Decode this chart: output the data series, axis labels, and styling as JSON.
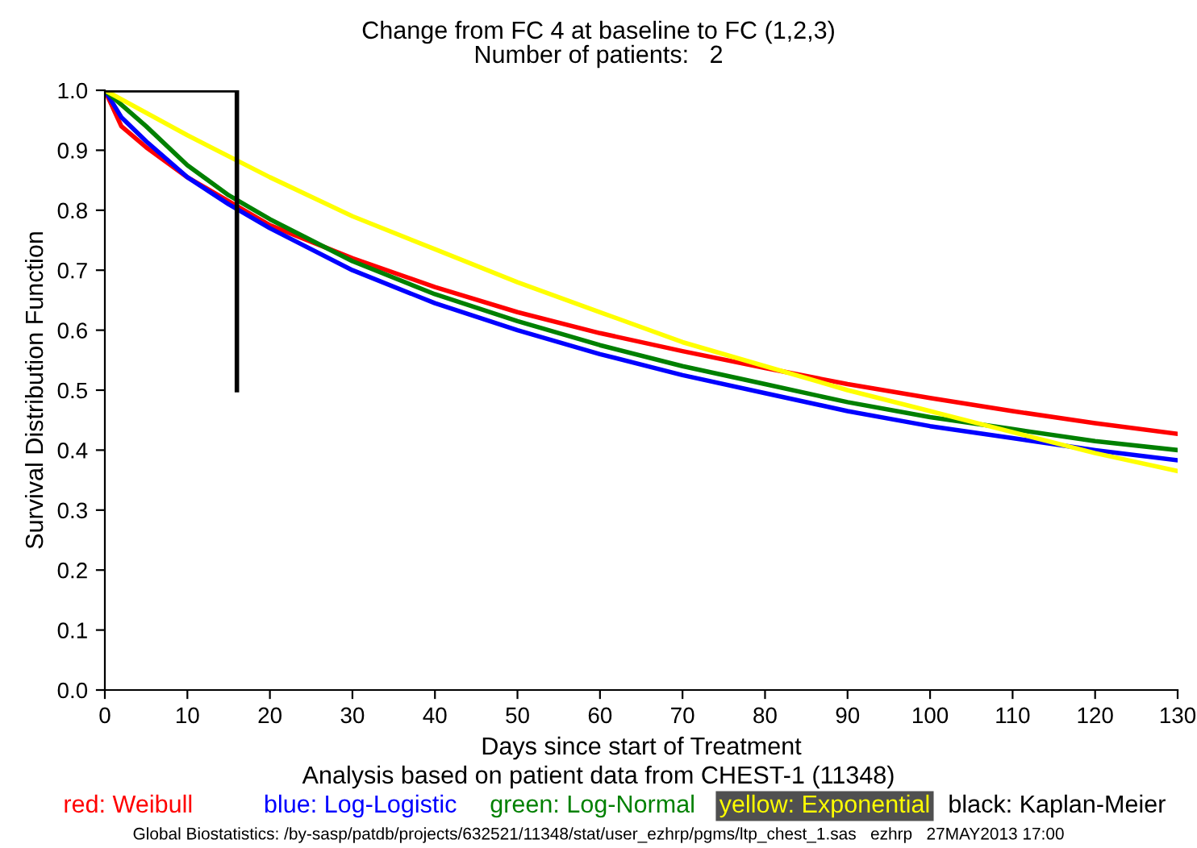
{
  "chart_data": {
    "type": "line",
    "title": "Change from FC 4 at baseline to FC (1,2,3)",
    "subtitle": "Number of patients:   2",
    "xlabel": "Days since start of Treatment",
    "ylabel": "Survival Distribution Function",
    "xlim": [
      0,
      130
    ],
    "xticks": [
      0,
      10,
      20,
      30,
      40,
      50,
      60,
      70,
      80,
      90,
      100,
      110,
      120,
      130
    ],
    "ylim": [
      0,
      1.0
    ],
    "yticks": [
      {
        "value": 0,
        "label": "0.0"
      },
      {
        "value": 0.1,
        "label": "0.1"
      },
      {
        "value": 0.2,
        "label": "0.2"
      },
      {
        "value": 0.3,
        "label": "0.3"
      },
      {
        "value": 0.4,
        "label": "0.4"
      },
      {
        "value": 0.5,
        "label": "0.5"
      },
      {
        "value": 0.6,
        "label": "0.6"
      },
      {
        "value": 0.7,
        "label": "0.7"
      },
      {
        "value": 0.8,
        "label": "0.8"
      },
      {
        "value": 0.9,
        "label": "0.9"
      },
      {
        "value": 1.0,
        "label": "1.0"
      }
    ],
    "grid": false,
    "legend": "bottom",
    "marker": "none",
    "line_style": "solid",
    "series": [
      {
        "name": "red: Weibull",
        "color": "#ff0000",
        "x": [
          0,
          2,
          5,
          10,
          20,
          30,
          40,
          50,
          60,
          70,
          80,
          90,
          100,
          110,
          120,
          130
        ],
        "values": [
          1.0,
          0.94,
          0.905,
          0.855,
          0.775,
          0.72,
          0.672,
          0.63,
          0.595,
          0.565,
          0.537,
          0.51,
          0.487,
          0.465,
          0.445,
          0.427
        ]
      },
      {
        "name": "blue: Log-Logistic",
        "color": "#0000ff",
        "x": [
          0,
          2,
          5,
          10,
          15,
          20,
          30,
          40,
          50,
          60,
          70,
          80,
          90,
          100,
          110,
          120,
          130
        ],
        "values": [
          1.0,
          0.955,
          0.915,
          0.855,
          0.81,
          0.77,
          0.7,
          0.645,
          0.6,
          0.56,
          0.525,
          0.495,
          0.465,
          0.44,
          0.42,
          0.4,
          0.383
        ]
      },
      {
        "name": "green: Log-Normal",
        "color": "#008000",
        "x": [
          0,
          5,
          10,
          15,
          20,
          30,
          40,
          50,
          60,
          70,
          80,
          90,
          100,
          110,
          120,
          130
        ],
        "values": [
          1.0,
          0.94,
          0.875,
          0.825,
          0.785,
          0.715,
          0.66,
          0.615,
          0.575,
          0.54,
          0.51,
          0.48,
          0.455,
          0.435,
          0.415,
          0.4
        ]
      },
      {
        "name": "yellow: Exponential",
        "color": "#ffff00",
        "x": [
          0,
          10,
          20,
          30,
          40,
          50,
          60,
          70,
          80,
          90,
          100,
          110,
          120,
          130
        ],
        "values": [
          1.0,
          0.925,
          0.855,
          0.79,
          0.735,
          0.68,
          0.63,
          0.58,
          0.54,
          0.5,
          0.465,
          0.43,
          0.395,
          0.365
        ]
      },
      {
        "name": "black: Kaplan-Meier",
        "color": "#000000",
        "type": "step",
        "x": [
          0,
          16
        ],
        "values": [
          1.0,
          0.5
        ]
      }
    ],
    "annotations": [
      "Analysis based on patient data from CHEST-1 (11348)",
      "Global Biostatistics: /by-sasp/patdb/projects/632521/11348/stat/user_ezhrp/pgms/ltp_chest_1.sas   ezhrp   27MAY2013 17:00"
    ]
  }
}
